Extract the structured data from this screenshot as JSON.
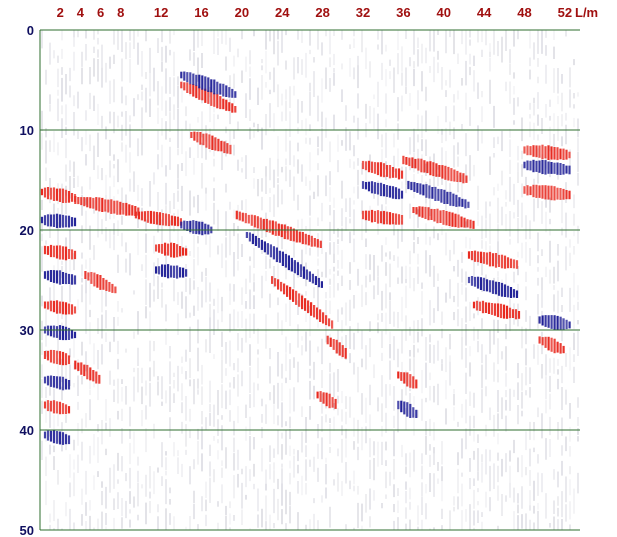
{
  "chart_data": {
    "type": "heatmap",
    "title": "",
    "x_unit_label": "L/m",
    "x_ticks": [
      2,
      4,
      6,
      8,
      12,
      16,
      20,
      24,
      28,
      32,
      36,
      40,
      44,
      48,
      52
    ],
    "y_ticks": [
      0,
      10,
      20,
      30,
      40,
      50
    ],
    "xlim": [
      0,
      53.5
    ],
    "ylim": [
      0,
      50
    ],
    "grid": true,
    "colors": {
      "positive": "#e8281e",
      "negative": "#1e1e96",
      "trace": "#8a8aa0",
      "grid": "#2e6e2e",
      "x_tick_text": "#a01010",
      "y_tick_text": "#101060"
    },
    "reflection_events": [
      {
        "x": [
          0.2,
          3.5
        ],
        "y": [
          16.2,
          16.8
        ],
        "polarity": "positive"
      },
      {
        "x": [
          0.2,
          3.5
        ],
        "y": [
          19.0,
          19.2
        ],
        "polarity": "negative"
      },
      {
        "x": [
          3.5,
          10.0
        ],
        "y": [
          17.0,
          18.2
        ],
        "polarity": "positive"
      },
      {
        "x": [
          9.5,
          14.0
        ],
        "y": [
          18.5,
          19.2
        ],
        "polarity": "positive"
      },
      {
        "x": [
          14.0,
          17.0
        ],
        "y": [
          19.5,
          20.0
        ],
        "polarity": "negative"
      },
      {
        "x": [
          11.5,
          14.5
        ],
        "y": [
          21.8,
          22.2
        ],
        "polarity": "positive"
      },
      {
        "x": [
          11.5,
          14.5
        ],
        "y": [
          24.0,
          24.3
        ],
        "polarity": "negative"
      },
      {
        "x": [
          14.0,
          19.5
        ],
        "y": [
          5.5,
          8.0
        ],
        "polarity": "positive"
      },
      {
        "x": [
          14.0,
          19.5
        ],
        "y": [
          4.5,
          6.5
        ],
        "polarity": "negative"
      },
      {
        "x": [
          15.0,
          19.0
        ],
        "y": [
          10.5,
          12.0
        ],
        "polarity": "positive"
      },
      {
        "x": [
          19.5,
          28.0
        ],
        "y": [
          18.5,
          21.5
        ],
        "polarity": "positive"
      },
      {
        "x": [
          20.5,
          28.0
        ],
        "y": [
          20.5,
          25.5
        ],
        "polarity": "negative"
      },
      {
        "x": [
          23.0,
          29.0
        ],
        "y": [
          25.0,
          29.5
        ],
        "polarity": "positive"
      },
      {
        "x": [
          28.5,
          30.5
        ],
        "y": [
          31.0,
          32.5
        ],
        "polarity": "positive"
      },
      {
        "x": [
          32.0,
          36.0
        ],
        "y": [
          13.5,
          14.5
        ],
        "polarity": "positive"
      },
      {
        "x": [
          32.0,
          36.0
        ],
        "y": [
          15.5,
          16.5
        ],
        "polarity": "negative"
      },
      {
        "x": [
          32.0,
          36.0
        ],
        "y": [
          18.5,
          19.0
        ],
        "polarity": "positive"
      },
      {
        "x": [
          36.0,
          42.5
        ],
        "y": [
          13.0,
          15.0
        ],
        "polarity": "positive"
      },
      {
        "x": [
          36.5,
          42.5
        ],
        "y": [
          15.5,
          17.5
        ],
        "polarity": "negative"
      },
      {
        "x": [
          37.0,
          43.0
        ],
        "y": [
          18.0,
          19.5
        ],
        "polarity": "positive"
      },
      {
        "x": [
          42.5,
          47.5
        ],
        "y": [
          22.5,
          23.5
        ],
        "polarity": "positive"
      },
      {
        "x": [
          42.5,
          47.5
        ],
        "y": [
          25.0,
          26.5
        ],
        "polarity": "negative"
      },
      {
        "x": [
          43.0,
          47.5
        ],
        "y": [
          27.5,
          28.5
        ],
        "polarity": "positive"
      },
      {
        "x": [
          48.0,
          52.5
        ],
        "y": [
          12.0,
          12.5
        ],
        "polarity": "positive"
      },
      {
        "x": [
          48.0,
          52.5
        ],
        "y": [
          13.5,
          14.0
        ],
        "polarity": "negative"
      },
      {
        "x": [
          48.0,
          52.5
        ],
        "y": [
          16.0,
          16.5
        ],
        "polarity": "positive"
      },
      {
        "x": [
          0.5,
          3.0
        ],
        "y": [
          32.5,
          33.0
        ],
        "polarity": "positive"
      },
      {
        "x": [
          0.5,
          3.0
        ],
        "y": [
          35.0,
          35.5
        ],
        "polarity": "negative"
      },
      {
        "x": [
          0.5,
          3.0
        ],
        "y": [
          37.5,
          38.0
        ],
        "polarity": "positive"
      },
      {
        "x": [
          0.5,
          3.0
        ],
        "y": [
          40.5,
          41.0
        ],
        "polarity": "negative"
      },
      {
        "x": [
          3.5,
          6.0
        ],
        "y": [
          33.5,
          35.0
        ],
        "polarity": "positive"
      },
      {
        "x": [
          35.5,
          37.5
        ],
        "y": [
          34.5,
          35.5
        ],
        "polarity": "positive"
      },
      {
        "x": [
          35.5,
          37.5
        ],
        "y": [
          37.5,
          38.5
        ],
        "polarity": "negative"
      },
      {
        "x": [
          27.5,
          29.5
        ],
        "y": [
          36.5,
          37.5
        ],
        "polarity": "positive"
      },
      {
        "x": [
          49.5,
          52.5
        ],
        "y": [
          29.0,
          29.5
        ],
        "polarity": "negative"
      },
      {
        "x": [
          49.5,
          52.0
        ],
        "y": [
          31.0,
          32.0
        ],
        "polarity": "positive"
      },
      {
        "x": [
          4.5,
          7.5
        ],
        "y": [
          24.5,
          26.0
        ],
        "polarity": "positive"
      },
      {
        "x": [
          0.5,
          3.5
        ],
        "y": [
          22.0,
          22.5
        ],
        "polarity": "positive"
      },
      {
        "x": [
          0.5,
          3.5
        ],
        "y": [
          24.5,
          25.0
        ],
        "polarity": "negative"
      },
      {
        "x": [
          0.5,
          3.5
        ],
        "y": [
          27.5,
          28.0
        ],
        "polarity": "positive"
      },
      {
        "x": [
          0.5,
          3.5
        ],
        "y": [
          30.0,
          30.5
        ],
        "polarity": "negative"
      }
    ]
  }
}
